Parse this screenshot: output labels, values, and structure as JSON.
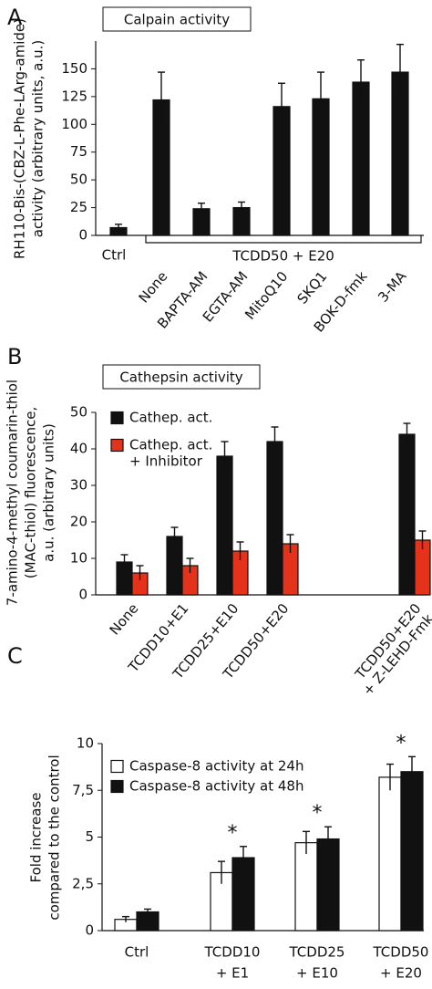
{
  "chart_data": [
    {
      "type": "bar",
      "panel": "A",
      "title": "Calpain activity",
      "ylabel": [
        "RH110-Bis-(CBZ-L-Phe-LArg-amide)",
        "activity (arbitrary units, a.u.)"
      ],
      "categories": [
        "Ctrl",
        "None",
        "BAPTA-AM",
        "EGTA-AM",
        "MitoQ10",
        "SKQ1",
        "BOK-D-fmk",
        "3-MA"
      ],
      "group_label": "TCDD50 + E20",
      "values": [
        7,
        122,
        24,
        25,
        116,
        123,
        138,
        147
      ],
      "errors": [
        3,
        25,
        5,
        5,
        21,
        24,
        20,
        25
      ],
      "color": "#111111",
      "ylim": [
        0,
        175
      ],
      "yticks": [
        0,
        25,
        50,
        75,
        100,
        125,
        150
      ]
    },
    {
      "type": "bar",
      "panel": "B",
      "title": "Cathepsin activity",
      "ylabel": [
        "7-amino-4-methyl coumarin-thiol",
        "(MAC-thiol) fluorescence,",
        "a.u. (arbitrary units)"
      ],
      "categories": [
        "None",
        "TCDD10+E1",
        "TCDD25+E10",
        "TCDD50+E20",
        [
          "TCDD50+E20",
          "+ Z-LEHD-Fmk"
        ]
      ],
      "series": [
        {
          "name": "Cathep. act.",
          "color": "#111111",
          "values": [
            9,
            16,
            38,
            42,
            44
          ],
          "errors": [
            2,
            2.5,
            4,
            4,
            3
          ]
        },
        {
          "name": [
            "Cathep. act.",
            "+ Inhibitor"
          ],
          "color": "#e4321b",
          "values": [
            6,
            8,
            12,
            14,
            15
          ],
          "errors": [
            2,
            2,
            2.5,
            2.5,
            2.5
          ]
        }
      ],
      "ylim": [
        0,
        50
      ],
      "yticks": [
        0,
        10,
        20,
        30,
        40,
        50
      ],
      "legend": "upper left"
    },
    {
      "type": "bar",
      "panel": "C",
      "ylabel": [
        "Fold increase",
        "compared to the control"
      ],
      "categories": [
        "Ctrl",
        [
          "TCDD10",
          "+ E1"
        ],
        [
          "TCDD25",
          "+ E10"
        ],
        [
          "TCDD50",
          "+ E20"
        ]
      ],
      "series": [
        {
          "name": "Caspase-8 activity at 24h",
          "color": "#ffffff",
          "values": [
            0.6,
            3.1,
            4.7,
            8.2
          ],
          "errors": [
            0.15,
            0.6,
            0.6,
            0.7
          ]
        },
        {
          "name": "Caspase-8 activity at 48h",
          "color": "#111111",
          "values": [
            1.0,
            3.9,
            4.9,
            8.5
          ],
          "errors": [
            0.15,
            0.6,
            0.65,
            0.8
          ]
        }
      ],
      "significance_marks": [
        null,
        "*",
        "*",
        "*"
      ],
      "ylim": [
        0,
        10
      ],
      "yticks": [
        0,
        {
          "value": 2.5,
          "label": "2,5"
        },
        5,
        {
          "value": 7.5,
          "label": "7,5"
        },
        10
      ],
      "legend": "upper left"
    }
  ]
}
